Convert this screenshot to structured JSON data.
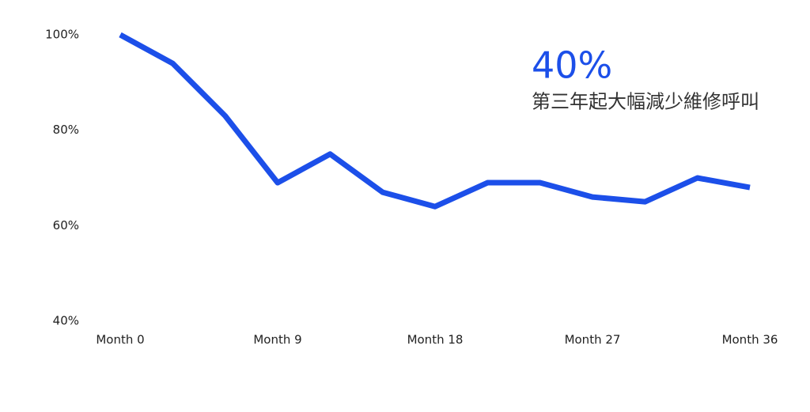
{
  "chart_data": {
    "type": "line",
    "annotation": {
      "headline": "40%",
      "text": "第三年起大幅減少維修呼叫"
    },
    "x": [
      0,
      3,
      6,
      9,
      12,
      15,
      18,
      21,
      24,
      27,
      30,
      33,
      36
    ],
    "series": [
      {
        "color": "#1c4fe9",
        "values": [
          100,
          94,
          83,
          69,
          75,
          67,
          64,
          69,
          69,
          66,
          65,
          70,
          68
        ]
      }
    ],
    "xlim": [
      0,
      36
    ],
    "xticks": [
      {
        "value": 0,
        "label": "Month 0"
      },
      {
        "value": 9,
        "label": "Month 9"
      },
      {
        "value": 18,
        "label": "Month 18"
      },
      {
        "value": 27,
        "label": "Month 27"
      },
      {
        "value": 36,
        "label": "Month 36"
      }
    ],
    "ylim": [
      40,
      100
    ],
    "yticks": [
      {
        "value": 40,
        "label": "40%"
      },
      {
        "value": 60,
        "label": "60%"
      },
      {
        "value": 80,
        "label": "80%"
      },
      {
        "value": 100,
        "label": "100%"
      }
    ],
    "grid": false
  }
}
